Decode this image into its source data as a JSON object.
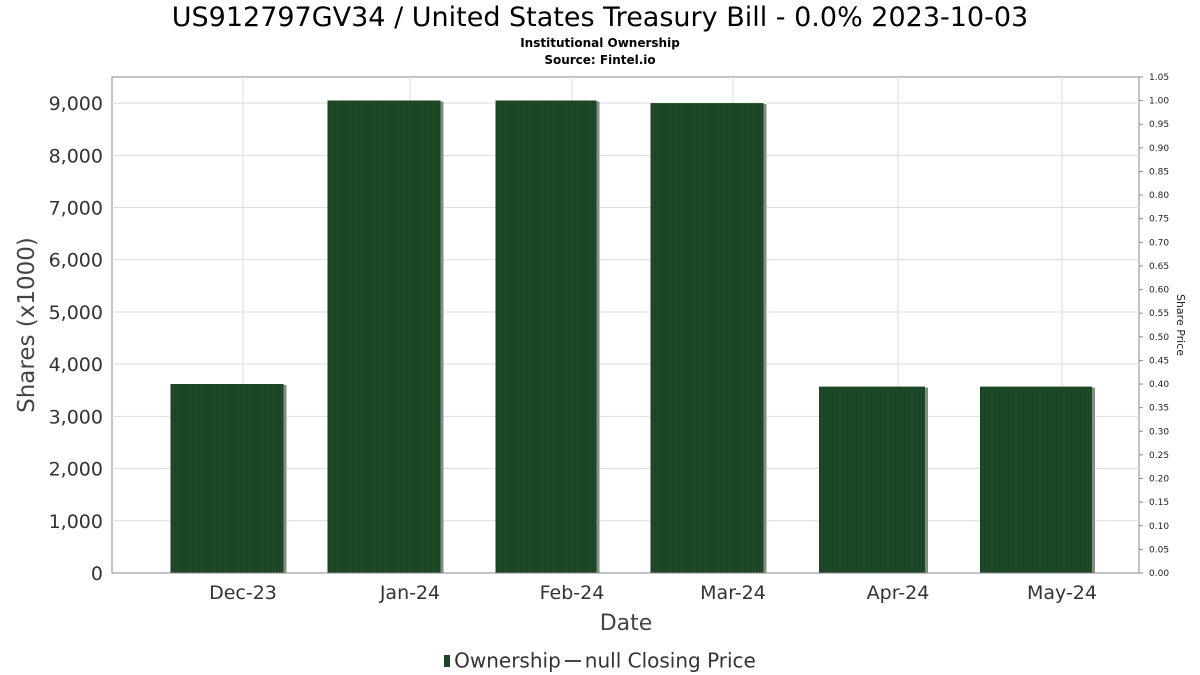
{
  "header": {
    "title": "US912797GV34 / United States Treasury Bill - 0.0% 2023-10-03",
    "subtitle1": "Institutional Ownership",
    "subtitle2": "Source: Fintel.io"
  },
  "legend": {
    "ownership_label": "Ownership",
    "price_label": "null Closing Price"
  },
  "colors": {
    "bar": "#1a4423",
    "bar_shadow": "#8a8a8a",
    "grid": "#dddddd",
    "axis": "#888888"
  },
  "chart_data": {
    "type": "bar",
    "title": "US912797GV34 / United States Treasury Bill - 0.0% 2023-10-03",
    "xlabel": "Date",
    "ylabel": "Shares (x1000)",
    "y2label": "Share Price",
    "categories": [
      "Dec-23",
      "Jan-24",
      "Feb-24",
      "Mar-24",
      "Apr-24",
      "May-24"
    ],
    "series": [
      {
        "name": "Ownership",
        "values": [
          3620,
          9050,
          9050,
          9000,
          3570,
          3570
        ]
      }
    ],
    "ylim": [
      0,
      9500
    ],
    "yticks": [
      "0",
      "1,000",
      "2,000",
      "3,000",
      "4,000",
      "5,000",
      "6,000",
      "7,000",
      "8,000",
      "9,000"
    ],
    "y2lim": [
      0,
      1.05
    ],
    "y2ticks": [
      "0.00",
      "0.05",
      "0.10",
      "0.15",
      "0.20",
      "0.25",
      "0.30",
      "0.35",
      "0.40",
      "0.45",
      "0.50",
      "0.55",
      "0.60",
      "0.65",
      "0.70",
      "0.75",
      "0.80",
      "0.85",
      "0.90",
      "0.95",
      "1.00",
      "1.05"
    ],
    "grid": true,
    "legend_position": "bottom-center"
  }
}
